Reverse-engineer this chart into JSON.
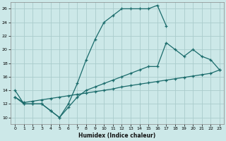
{
  "xlabel": "Humidex (Indice chaleur)",
  "bg_color": "#cce8e8",
  "grid_color": "#aacccc",
  "line_color": "#1a6b6b",
  "xlim": [
    -0.5,
    23.5
  ],
  "ylim": [
    9,
    27
  ],
  "xticks": [
    0,
    1,
    2,
    3,
    4,
    5,
    6,
    7,
    8,
    9,
    10,
    11,
    12,
    13,
    14,
    15,
    16,
    17,
    18,
    19,
    20,
    21,
    22,
    23
  ],
  "yticks": [
    10,
    12,
    14,
    16,
    18,
    20,
    22,
    24,
    26
  ],
  "line1_x": [
    0,
    1,
    2,
    3,
    4,
    5,
    6,
    7,
    8,
    9,
    10,
    11,
    12,
    13,
    14,
    15,
    16,
    17
  ],
  "line1_y": [
    14,
    12,
    12,
    12,
    11,
    10,
    12,
    15,
    18.5,
    21.5,
    24,
    25,
    26,
    26,
    26,
    26,
    26.5,
    23.5
  ],
  "line2_x": [
    0,
    1,
    2,
    3,
    4,
    5,
    6,
    7,
    8,
    9,
    10,
    11,
    12,
    13,
    14,
    15,
    16,
    17,
    18,
    19,
    20,
    21,
    22,
    23
  ],
  "line2_y": [
    13,
    12.2,
    12.4,
    12.6,
    12.8,
    13.0,
    13.2,
    13.4,
    13.6,
    13.8,
    14.0,
    14.2,
    14.5,
    14.7,
    14.9,
    15.1,
    15.3,
    15.5,
    15.7,
    15.9,
    16.1,
    16.3,
    16.5,
    17.0
  ],
  "line3_x": [
    0,
    1,
    2,
    3,
    4,
    5,
    6,
    7,
    8,
    9,
    10,
    11,
    12,
    13,
    14,
    15,
    16,
    17,
    18,
    19,
    20,
    21,
    22,
    23
  ],
  "line3_y": [
    13,
    12,
    12,
    12,
    11,
    10,
    11.5,
    13,
    14,
    14.5,
    15,
    15.5,
    16,
    16.5,
    17,
    17.5,
    17.5,
    21,
    20,
    19,
    20,
    19,
    18.5,
    17
  ]
}
